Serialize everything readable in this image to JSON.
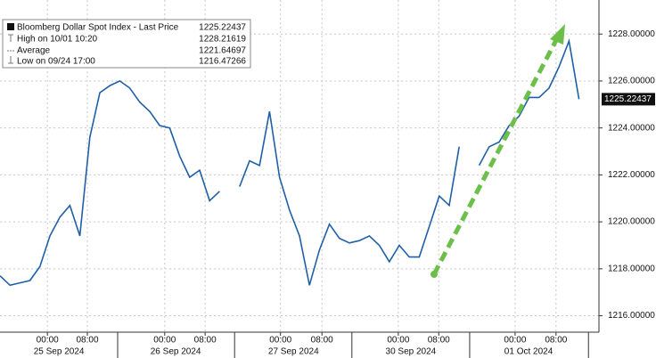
{
  "chart_data": {
    "type": "line",
    "x": [
      0,
      2,
      4,
      6,
      8,
      10,
      12,
      14,
      16,
      18,
      20,
      22,
      24,
      26,
      28,
      30,
      32,
      34,
      36,
      38,
      40,
      42,
      44,
      46,
      48,
      50,
      52,
      54,
      56,
      58,
      60,
      62,
      64,
      66,
      68,
      70,
      72,
      74,
      76,
      78,
      80,
      82,
      84,
      86,
      88,
      90,
      92,
      94,
      96,
      98,
      100,
      102,
      104,
      106,
      108,
      110,
      112,
      114,
      116
    ],
    "series": [
      {
        "name": "Bloomberg Dollar Spot Index - Last Price",
        "color": "#1f5fa8",
        "values": [
          1217.7,
          1217.3,
          1217.4,
          1217.5,
          1218.1,
          1219.4,
          1220.2,
          1220.7,
          1219.4,
          1223.6,
          1225.5,
          1225.8,
          1226.0,
          1225.7,
          1225.1,
          1224.7,
          1224.1,
          1224.0,
          1222.8,
          1221.9,
          1222.2,
          1220.9,
          1221.3,
          null,
          1221.5,
          1222.6,
          1222.4,
          1224.7,
          1221.9,
          1220.5,
          1219.4,
          1217.3,
          1218.8,
          1219.9,
          1219.3,
          1219.1,
          1219.2,
          1219.4,
          1219.0,
          1218.3,
          1219.0,
          1218.5,
          1218.5,
          1219.8,
          1221.1,
          1220.7,
          1223.2,
          null,
          1222.4,
          1223.2,
          1223.4,
          1224.1,
          1224.5,
          1225.3,
          1225.3,
          1225.7,
          1226.6,
          1227.7,
          1225.22437
        ]
      }
    ],
    "legend": [
      {
        "label": "Bloomberg Dollar Spot Index - Last Price",
        "value": 1225.22437
      },
      {
        "label": "High on 10/01 10:20",
        "value": 1228.21619
      },
      {
        "label": "Average",
        "value": 1221.64697
      },
      {
        "label": "Low on 09/24 17:00",
        "value": 1216.47266
      }
    ],
    "xlim": [
      0,
      120
    ],
    "xticks": [
      {
        "value": 9.5,
        "label": "00:00"
      },
      {
        "value": 17.5,
        "label": "08:00"
      },
      {
        "value": 33,
        "label": "00:00"
      },
      {
        "value": 41.1,
        "label": "08:00"
      },
      {
        "value": 56.2,
        "label": "00:00"
      },
      {
        "value": 64.5,
        "label": "08:00"
      },
      {
        "value": 79.8,
        "label": "00:00"
      },
      {
        "value": 87.9,
        "label": "08:00"
      },
      {
        "value": 103.2,
        "label": "00:00"
      },
      {
        "value": 111.4,
        "label": "08:00"
      }
    ],
    "day_ticks": [
      {
        "value": 11.8,
        "label": "25 Sep 2024"
      },
      {
        "value": 35.2,
        "label": "26 Sep 2024"
      },
      {
        "value": 58.8,
        "label": "27 Sep 2024"
      },
      {
        "value": 82.3,
        "label": "30 Sep 2024"
      },
      {
        "value": 105.9,
        "label": "01 Oct 2024"
      }
    ],
    "day_bounds": [
      23.57,
      47,
      70.5,
      94.1,
      117.9
    ],
    "ylim": [
      1215.3,
      1229.45
    ],
    "yticks": [
      {
        "value": 1216,
        "label": "1216.00000"
      },
      {
        "value": 1218,
        "label": "1218.00000"
      },
      {
        "value": 1220,
        "label": "1220.00000"
      },
      {
        "value": 1222,
        "label": "1222.00000"
      },
      {
        "value": 1224,
        "label": "1224.00000"
      },
      {
        "value": 1226,
        "label": "1226.00000"
      },
      {
        "value": 1228,
        "label": "1228.00000"
      }
    ],
    "grid": true
  }
}
